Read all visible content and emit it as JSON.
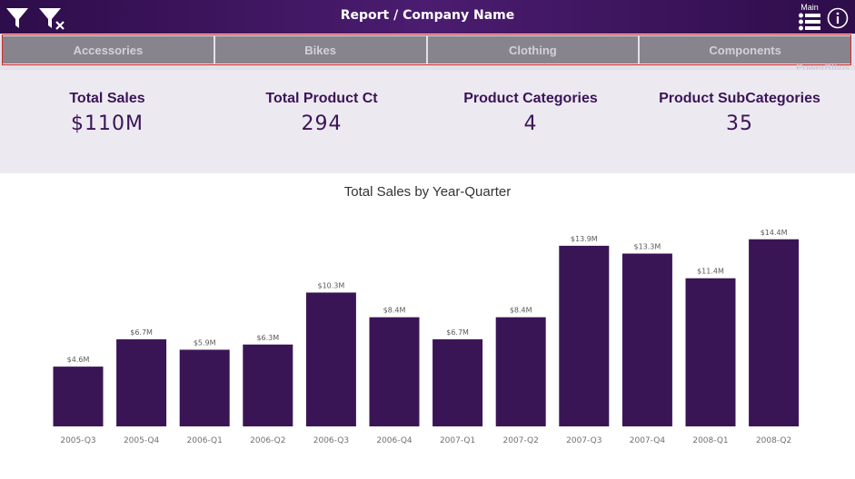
{
  "header": {
    "title": "Report / Company Name",
    "menu_label": "Main",
    "icons": [
      "filter-icon",
      "clear-filter-icon",
      "menu-icon",
      "info-icon"
    ],
    "background_color": "#3b1459"
  },
  "tabs": [
    {
      "label": "Accessories"
    },
    {
      "label": "Bikes"
    },
    {
      "label": "Clothing"
    },
    {
      "label": "Components"
    }
  ],
  "watermark": {
    "text": "PowerBI",
    "suffix": "tips"
  },
  "kpis": [
    {
      "label": "Total Sales",
      "value": "$110M"
    },
    {
      "label": "Total Product Ct",
      "value": "294"
    },
    {
      "label": "Product Categories",
      "value": "4"
    },
    {
      "label": "Product SubCategories",
      "value": "35"
    }
  ],
  "chart_data": {
    "type": "bar",
    "title": "Total Sales by Year-Quarter",
    "xlabel": "",
    "ylabel": "",
    "categories": [
      "2005-Q3",
      "2005-Q4",
      "2006-Q1",
      "2006-Q2",
      "2006-Q3",
      "2006-Q4",
      "2007-Q1",
      "2007-Q2",
      "2007-Q3",
      "2007-Q4",
      "2008-Q1",
      "2008-Q2"
    ],
    "values": [
      4.6,
      6.7,
      5.9,
      6.3,
      10.3,
      8.4,
      6.7,
      8.4,
      13.9,
      13.3,
      11.4,
      14.4
    ],
    "data_labels": [
      "$4.6M",
      "$6.7M",
      "$5.9M",
      "$6.3M",
      "$10.3M",
      "$8.4M",
      "$6.7M",
      "$8.4M",
      "$13.9M",
      "$13.3M",
      "$11.4M",
      "$14.4M"
    ],
    "unit": "$M",
    "ylim": [
      0,
      15.5
    ],
    "grid": false,
    "legend": "none",
    "bar_color": "#3a1556"
  }
}
